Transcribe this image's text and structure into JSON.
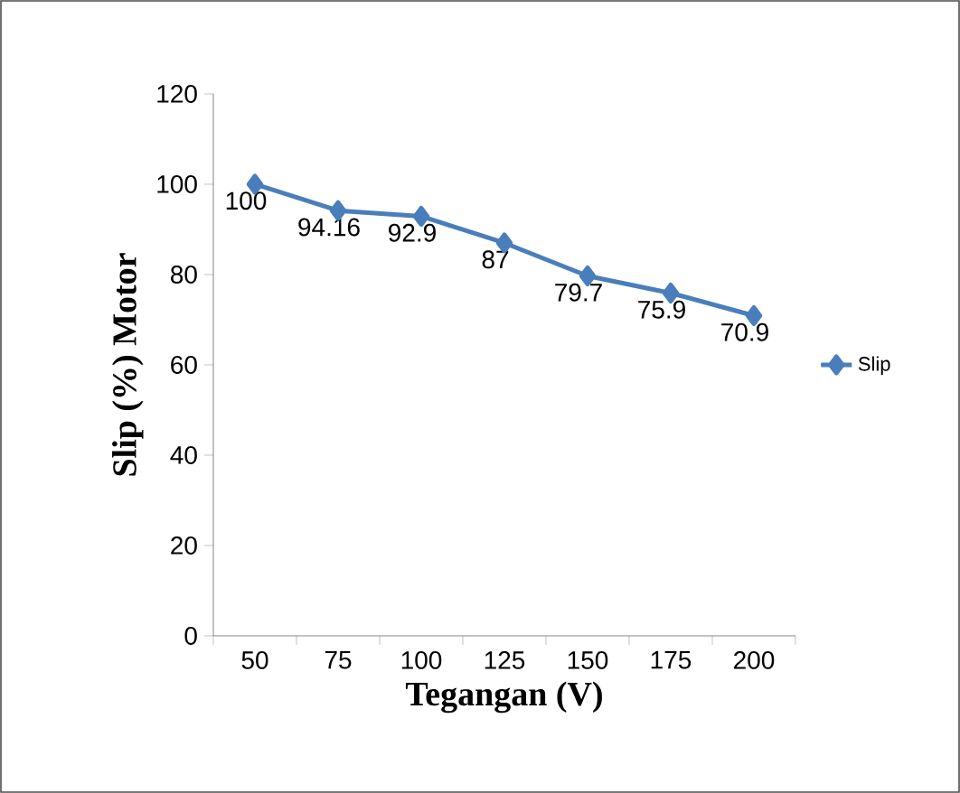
{
  "chart_data": {
    "type": "line",
    "xlabel": "Tegangan (V)",
    "ylabel": "Slip (%) Motor",
    "categories": [
      "50",
      "75",
      "100",
      "125",
      "150",
      "175",
      "200"
    ],
    "series": [
      {
        "name": "Slip",
        "color": "#4a7ebb",
        "values": [
          100,
          94.16,
          92.9,
          87,
          79.7,
          75.9,
          70.9
        ]
      }
    ],
    "ylim": [
      0,
      120
    ],
    "yticks": [
      0,
      20,
      40,
      60,
      80,
      100,
      120
    ],
    "marker": "diamond",
    "data_labels": true,
    "legend": "right",
    "grid": false
  }
}
